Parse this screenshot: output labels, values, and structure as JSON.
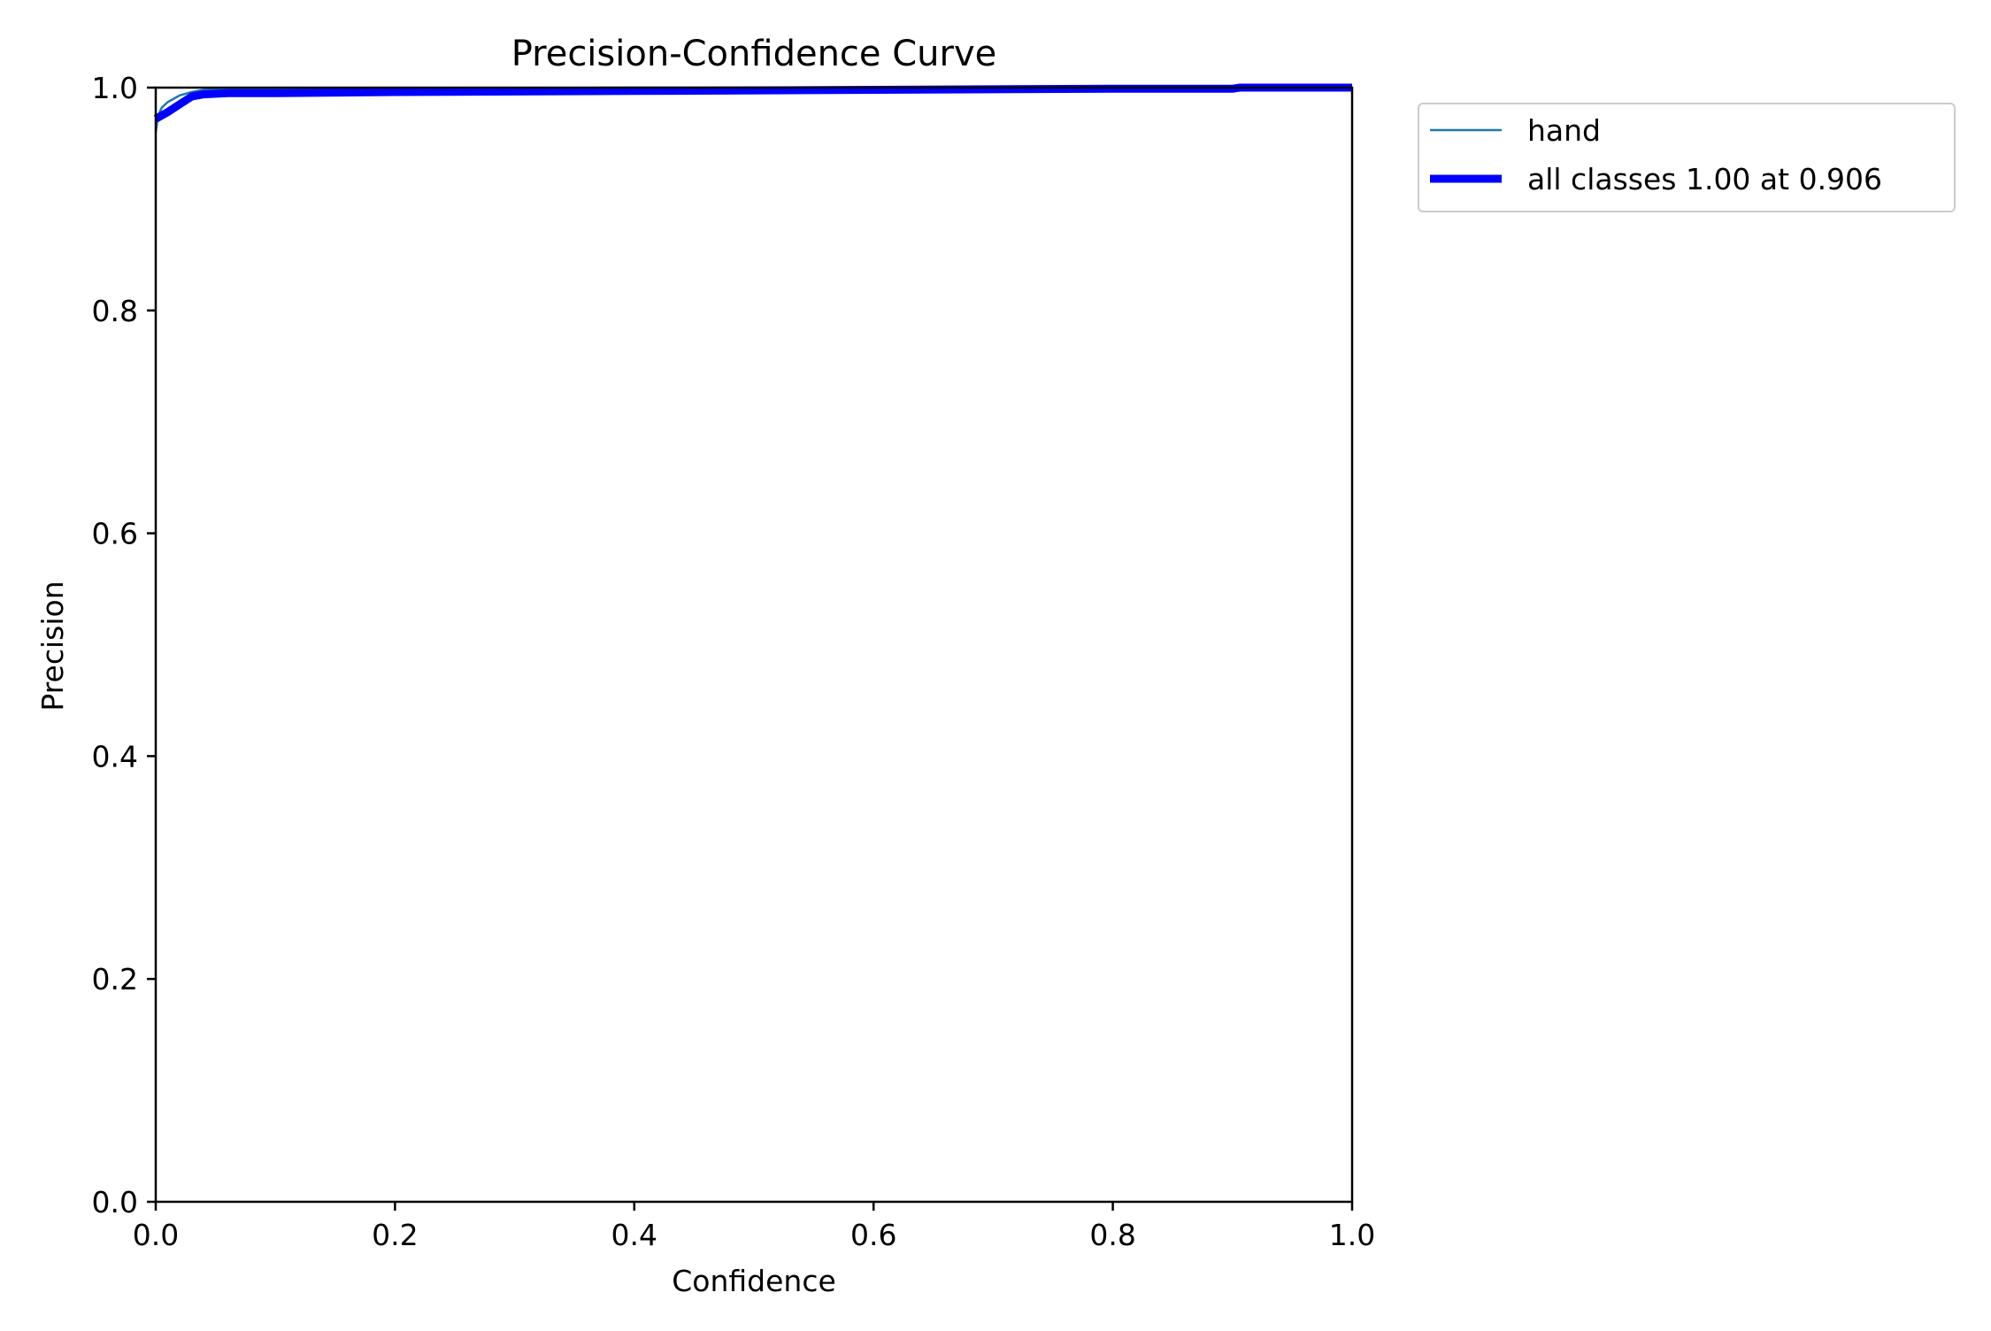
{
  "chart_data": {
    "type": "line",
    "title": "Precision-Confidence Curve",
    "xlabel": "Confidence",
    "ylabel": "Precision",
    "xlim": [
      0.0,
      1.0
    ],
    "ylim": [
      0.0,
      1.0
    ],
    "xticks": [
      "0.0",
      "0.2",
      "0.4",
      "0.6",
      "0.8",
      "1.0"
    ],
    "yticks": [
      "0.0",
      "0.2",
      "0.4",
      "0.6",
      "0.8",
      "1.0"
    ],
    "grid": false,
    "legend_position": "upper-right-outside",
    "series": [
      {
        "name": "hand",
        "color": "#1f77b4",
        "x": [
          0.0,
          0.002,
          0.005,
          0.01,
          0.015,
          0.02,
          0.03,
          0.04,
          0.06,
          0.1,
          0.2,
          0.4,
          0.6,
          0.8,
          0.9,
          1.0
        ],
        "y": [
          0.96,
          0.975,
          0.982,
          0.987,
          0.99,
          0.993,
          0.996,
          0.998,
          0.999,
          0.999,
          0.999,
          1.0,
          1.0,
          1.0,
          1.0,
          1.0
        ]
      },
      {
        "name": "all classes 1.00 at 0.906",
        "color": "#0000ff",
        "x": [
          0.0,
          0.01,
          0.02,
          0.03,
          0.04,
          0.06,
          0.1,
          0.2,
          0.4,
          0.6,
          0.8,
          0.9,
          0.906,
          1.0
        ],
        "y": [
          0.972,
          0.978,
          0.985,
          0.992,
          0.994,
          0.995,
          0.995,
          0.996,
          0.997,
          0.998,
          0.999,
          0.999,
          1.0,
          1.0
        ]
      }
    ]
  }
}
